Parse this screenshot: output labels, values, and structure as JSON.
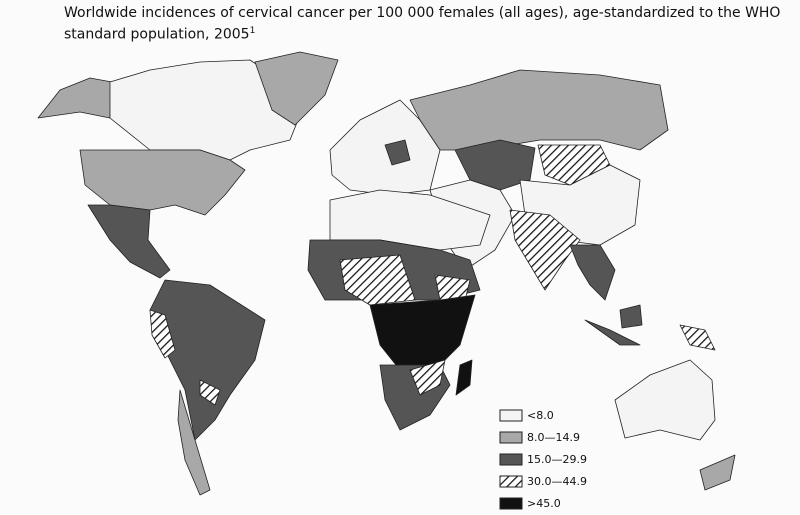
{
  "title": "Worldwide incidences of cervical cancer per 100 000 females (all ages), age-standardized to the WHO standard population, 2005",
  "title_note": "1",
  "legend": [
    {
      "label": "<8.0",
      "fill": "#f4f4f4"
    },
    {
      "label": "8.0—14.9",
      "fill": "#a8a8a8"
    },
    {
      "label": "15.0—29.9",
      "fill": "#555555"
    },
    {
      "label": "30.0—44.9",
      "fill": "hatch"
    },
    {
      "label": ">45.0",
      "fill": "#111111"
    }
  ]
}
